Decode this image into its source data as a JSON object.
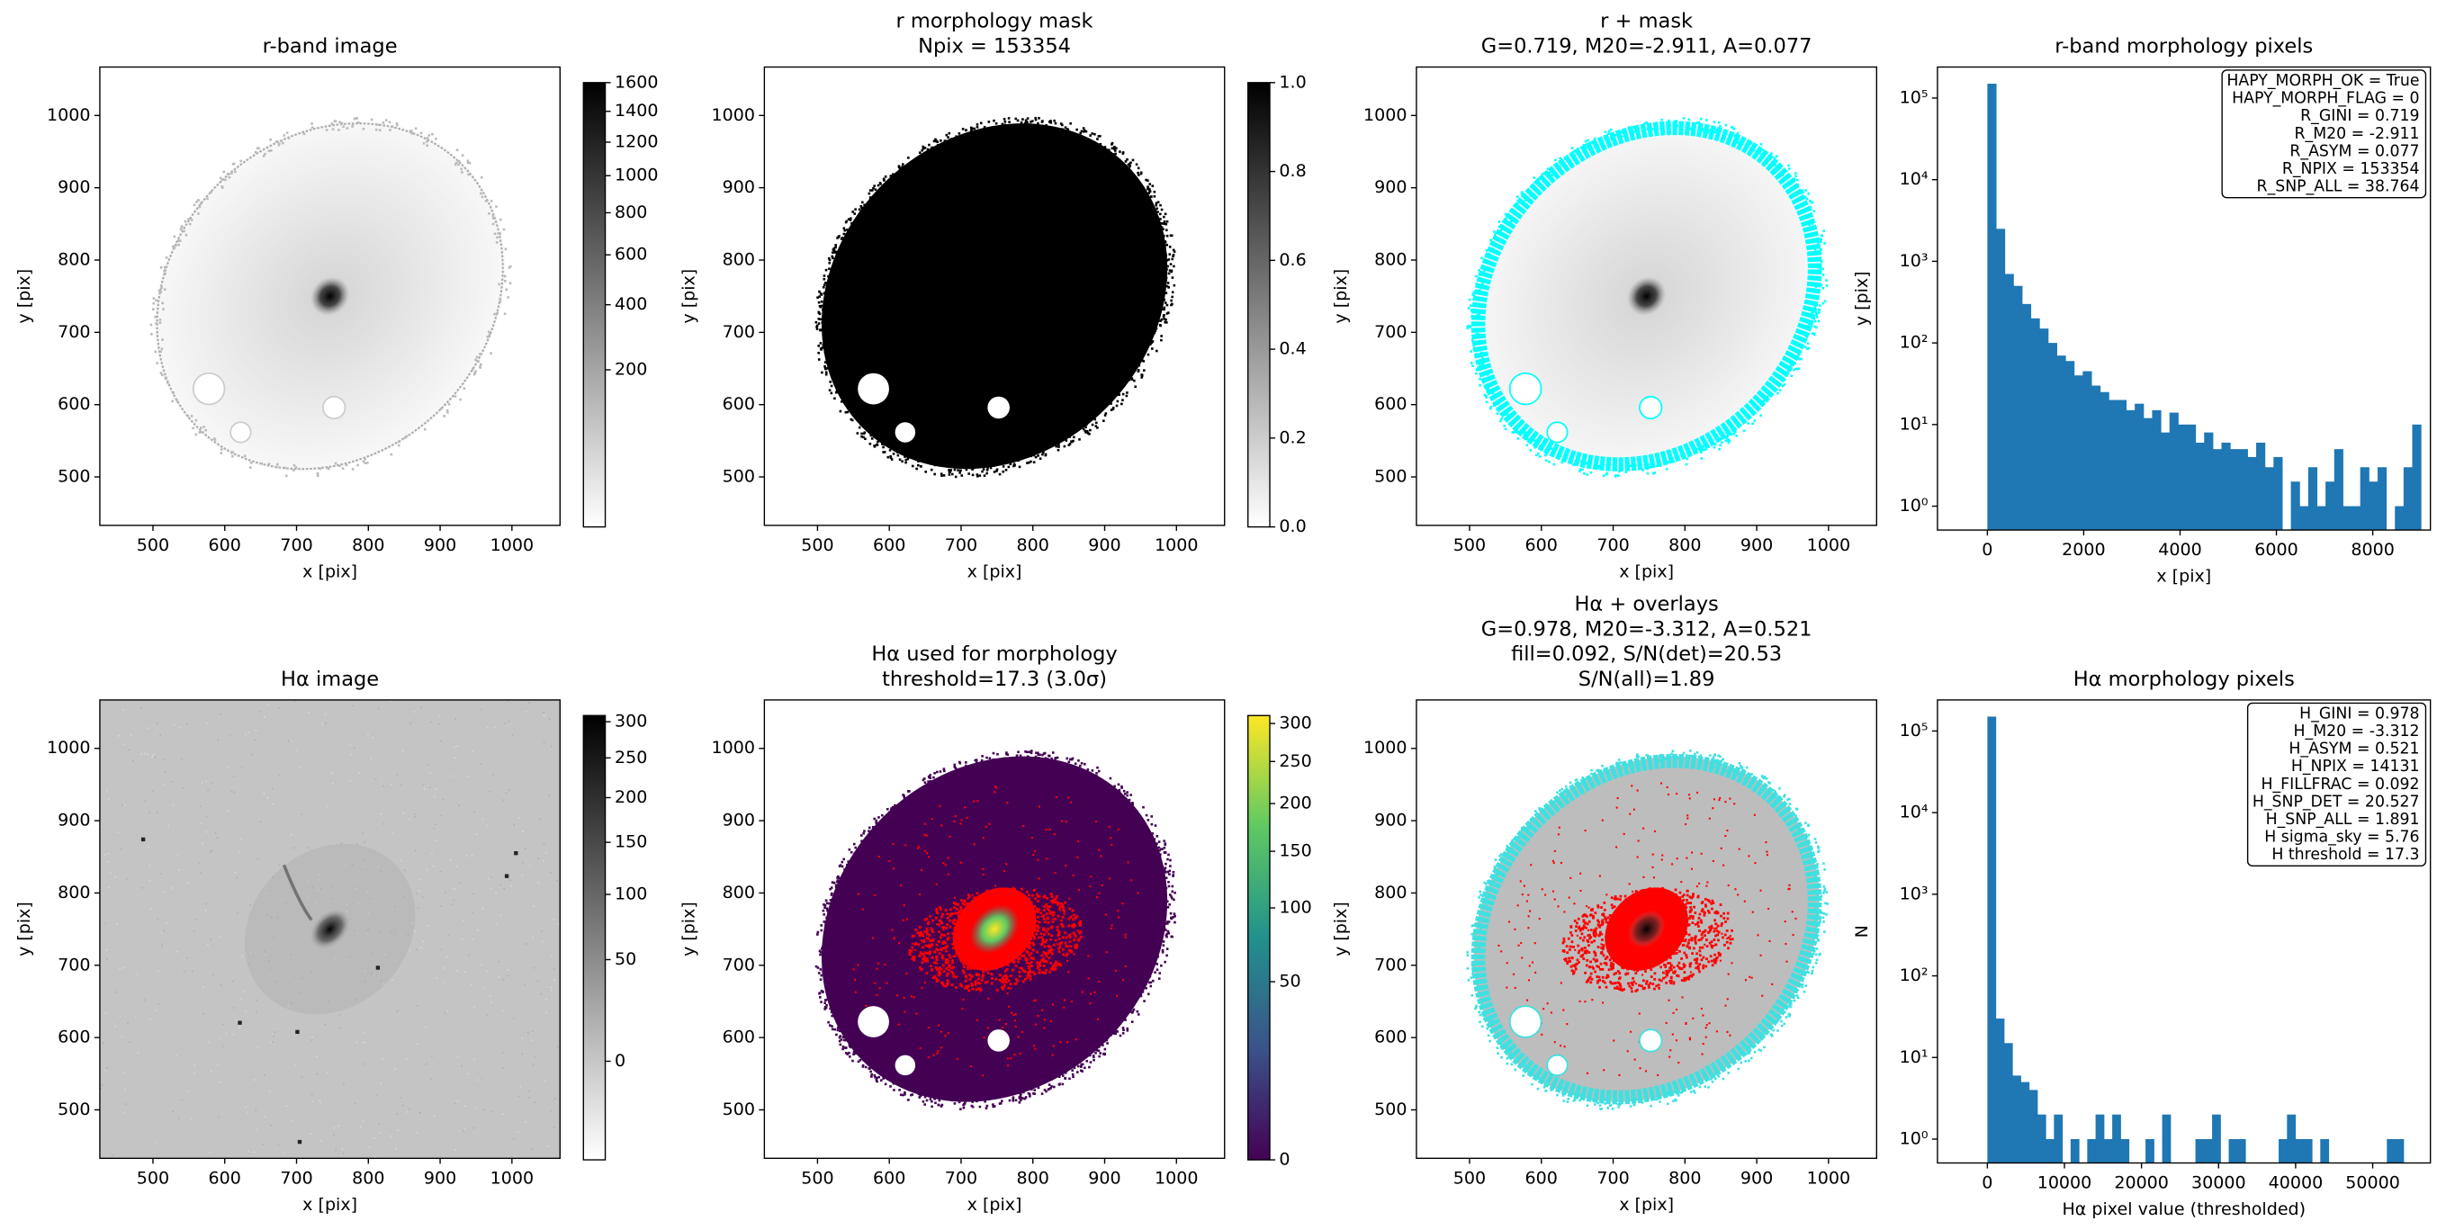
{
  "chart_data": [
    {
      "type": "image",
      "title": [
        "r-band image"
      ],
      "xlabel": "x [pix]",
      "ylabel": "y [pix]",
      "xlim": [
        426,
        1067
      ],
      "ylim": [
        433,
        1067
      ],
      "xticks": [
        500,
        600,
        700,
        800,
        900,
        1000
      ],
      "yticks": [
        500,
        600,
        700,
        800,
        900,
        1000
      ],
      "cmap": "gray_r",
      "colorbar": {
        "clim": [
          0,
          1600
        ],
        "scale": "sqrt",
        "ticks": [
          200,
          400,
          600,
          800,
          1000,
          1200,
          1400,
          1600
        ]
      }
    },
    {
      "type": "image",
      "title": [
        "r morphology mask",
        "Npix = 153354"
      ],
      "xlabel": "x [pix]",
      "ylabel": "y [pix]",
      "xlim": [
        426,
        1067
      ],
      "ylim": [
        433,
        1067
      ],
      "xticks": [
        500,
        600,
        700,
        800,
        900,
        1000
      ],
      "yticks": [
        500,
        600,
        700,
        800,
        900,
        1000
      ],
      "cmap": "gray_r",
      "colorbar": {
        "clim": [
          0,
          1
        ],
        "scale": "linear",
        "ticks": [
          {
            "value": 0,
            "label": "0.0"
          },
          0.2,
          0.4,
          0.6,
          0.8,
          {
            "value": 1,
            "label": "1.0"
          }
        ]
      }
    },
    {
      "type": "image",
      "title": [
        "r + mask",
        "G=0.719, M20=-2.911, A=0.077"
      ],
      "xlabel": "x [pix]",
      "ylabel": "y [pix]",
      "xlim": [
        426,
        1067
      ],
      "ylim": [
        433,
        1067
      ],
      "xticks": [
        500,
        600,
        700,
        800,
        900,
        1000
      ],
      "yticks": [
        500,
        600,
        700,
        800,
        900,
        1000
      ],
      "cmap": "gray_r"
    },
    {
      "type": "histogram",
      "title": [
        "r-band morphology pixels"
      ],
      "xlabel": "x [pix]",
      "ylabel": "y [pix]",
      "color": "#1f77b4",
      "xlim": [
        -1036,
        9197
      ],
      "ylim": [
        0.51,
        240000
      ],
      "yscale": "log",
      "xticks": [
        0,
        2000,
        4000,
        6000,
        8000
      ],
      "yticks": [
        {
          "value": 1,
          "label": "10⁰"
        },
        {
          "value": 10,
          "label": "10¹"
        },
        {
          "value": 100,
          "label": "10²"
        },
        {
          "value": 1000,
          "label": "10³"
        },
        {
          "value": 10000,
          "label": "10⁴"
        },
        {
          "value": 100000,
          "label": "10⁵"
        }
      ],
      "bins": [
        0,
        180,
        360,
        540,
        720,
        900,
        1080,
        1260,
        1440,
        1620,
        1800,
        1980,
        2160,
        2340,
        2520,
        2700,
        2880,
        3060,
        3240,
        3420,
        3600,
        3780,
        3960,
        4140,
        4320,
        4500,
        4680,
        4860,
        5040,
        5220,
        5400,
        5580,
        5760,
        5940,
        6120,
        6300,
        6480,
        6660,
        6840,
        7020,
        7200,
        7380,
        7560,
        7740,
        7920,
        8100,
        8280,
        8460,
        8640,
        8820,
        9000
      ],
      "counts": [
        150000,
        2500,
        700,
        500,
        300,
        200,
        150,
        100,
        70,
        60,
        40,
        45,
        30,
        25,
        20,
        20,
        15,
        18,
        12,
        15,
        8,
        14,
        10,
        10,
        6,
        8,
        5,
        6,
        5,
        5,
        4,
        6,
        3,
        4,
        0,
        2,
        1,
        3,
        1,
        2,
        5,
        1,
        1,
        3,
        2,
        3,
        0,
        1,
        3,
        10
      ],
      "annotations": [
        "HAPY_MORPH_OK = True",
        "HAPY_MORPH_FLAG = 0",
        "R_GINI = 0.719",
        "R_M20 = -2.911",
        "R_ASYM = 0.077",
        "R_NPIX = 153354",
        "R_SNP_ALL = 38.764"
      ]
    },
    {
      "type": "image",
      "title": [
        "Hα image"
      ],
      "xlabel": "x [pix]",
      "ylabel": "y [pix]",
      "xlim": [
        426,
        1067
      ],
      "ylim": [
        433,
        1067
      ],
      "xticks": [
        500,
        600,
        700,
        800,
        900,
        1000
      ],
      "yticks": [
        500,
        600,
        700,
        800,
        900,
        1000
      ],
      "cmap": "gray_r",
      "colorbar": {
        "clim": [
          -16,
          309
        ],
        "scale": "sqrt",
        "ticks": [
          0,
          50,
          100,
          150,
          200,
          250,
          300
        ]
      }
    },
    {
      "type": "image",
      "title": [
        "Hα used for morphology",
        "threshold=17.3 (3.0σ)"
      ],
      "xlabel": "x [pix]",
      "ylabel": "y [pix]",
      "xlim": [
        426,
        1067
      ],
      "ylim": [
        433,
        1067
      ],
      "xticks": [
        500,
        600,
        700,
        800,
        900,
        1000
      ],
      "yticks": [
        500,
        600,
        700,
        800,
        900,
        1000
      ],
      "cmap": "viridis",
      "colorbar": {
        "clim": [
          0,
          311
        ],
        "scale": "sqrt",
        "ticks": [
          0,
          50,
          100,
          150,
          200,
          250,
          300
        ]
      }
    },
    {
      "type": "image",
      "title": [
        "Hα + overlays",
        "G=0.978, M20=-3.312, A=0.521",
        "fill=0.092, S/N(det)=20.53",
        "S/N(all)=1.89"
      ],
      "xlabel": "x [pix]",
      "ylabel": "y [pix]",
      "xlim": [
        426,
        1067
      ],
      "ylim": [
        433,
        1067
      ],
      "xticks": [
        500,
        600,
        700,
        800,
        900,
        1000
      ],
      "yticks": [
        500,
        600,
        700,
        800,
        900,
        1000
      ],
      "cmap": "gray_r"
    },
    {
      "type": "histogram",
      "title": [
        "Hα morphology pixels"
      ],
      "xlabel": "Hα pixel value (thresholded)",
      "ylabel": "N",
      "color": "#1f77b4",
      "xlim": [
        -6478,
        57490
      ],
      "ylim": [
        0.51,
        240000
      ],
      "yscale": "log",
      "xticks": [
        0,
        10000,
        20000,
        30000,
        40000,
        50000
      ],
      "yticks": [
        {
          "value": 1,
          "label": "10⁰"
        },
        {
          "value": 10,
          "label": "10¹"
        },
        {
          "value": 100,
          "label": "10²"
        },
        {
          "value": 1000,
          "label": "10³"
        },
        {
          "value": 10000,
          "label": "10⁴"
        },
        {
          "value": 100000,
          "label": "10⁵"
        }
      ],
      "bins": [
        0,
        1080,
        2160,
        3240,
        4320,
        5400,
        6480,
        7560,
        8640,
        9720,
        10800,
        11880,
        12960,
        14040,
        15120,
        16200,
        17280,
        18360,
        19440,
        20520,
        21600,
        22680,
        23760,
        24840,
        25920,
        27000,
        28080,
        29160,
        30240,
        31320,
        32400,
        33480,
        34560,
        35640,
        36720,
        37800,
        38880,
        39960,
        41040,
        42120,
        43200,
        44280,
        45360,
        46440,
        47520,
        48600,
        49680,
        50760,
        51840,
        52920,
        54000
      ],
      "counts": [
        150000,
        30,
        15,
        6,
        5,
        4,
        2,
        1,
        2,
        0,
        1,
        0,
        1,
        2,
        1,
        2,
        1,
        0,
        0,
        1,
        0,
        2,
        0,
        0,
        0,
        1,
        1,
        2,
        0,
        1,
        1,
        0,
        0,
        0,
        0,
        1,
        2,
        1,
        1,
        0,
        1,
        0,
        0,
        0,
        0,
        0,
        0,
        0,
        1,
        1
      ],
      "annotations": [
        "H_GINI = 0.978",
        "H_M20 = -3.312",
        "H_ASYM = 0.521",
        "H_NPIX = 14131",
        "H_FILLFRAC = 0.092",
        "H_SNP_DET = 20.527",
        "H_SNP_ALL = 1.891",
        "H sigma_sky = 5.76",
        "H threshold = 17.3"
      ]
    }
  ]
}
